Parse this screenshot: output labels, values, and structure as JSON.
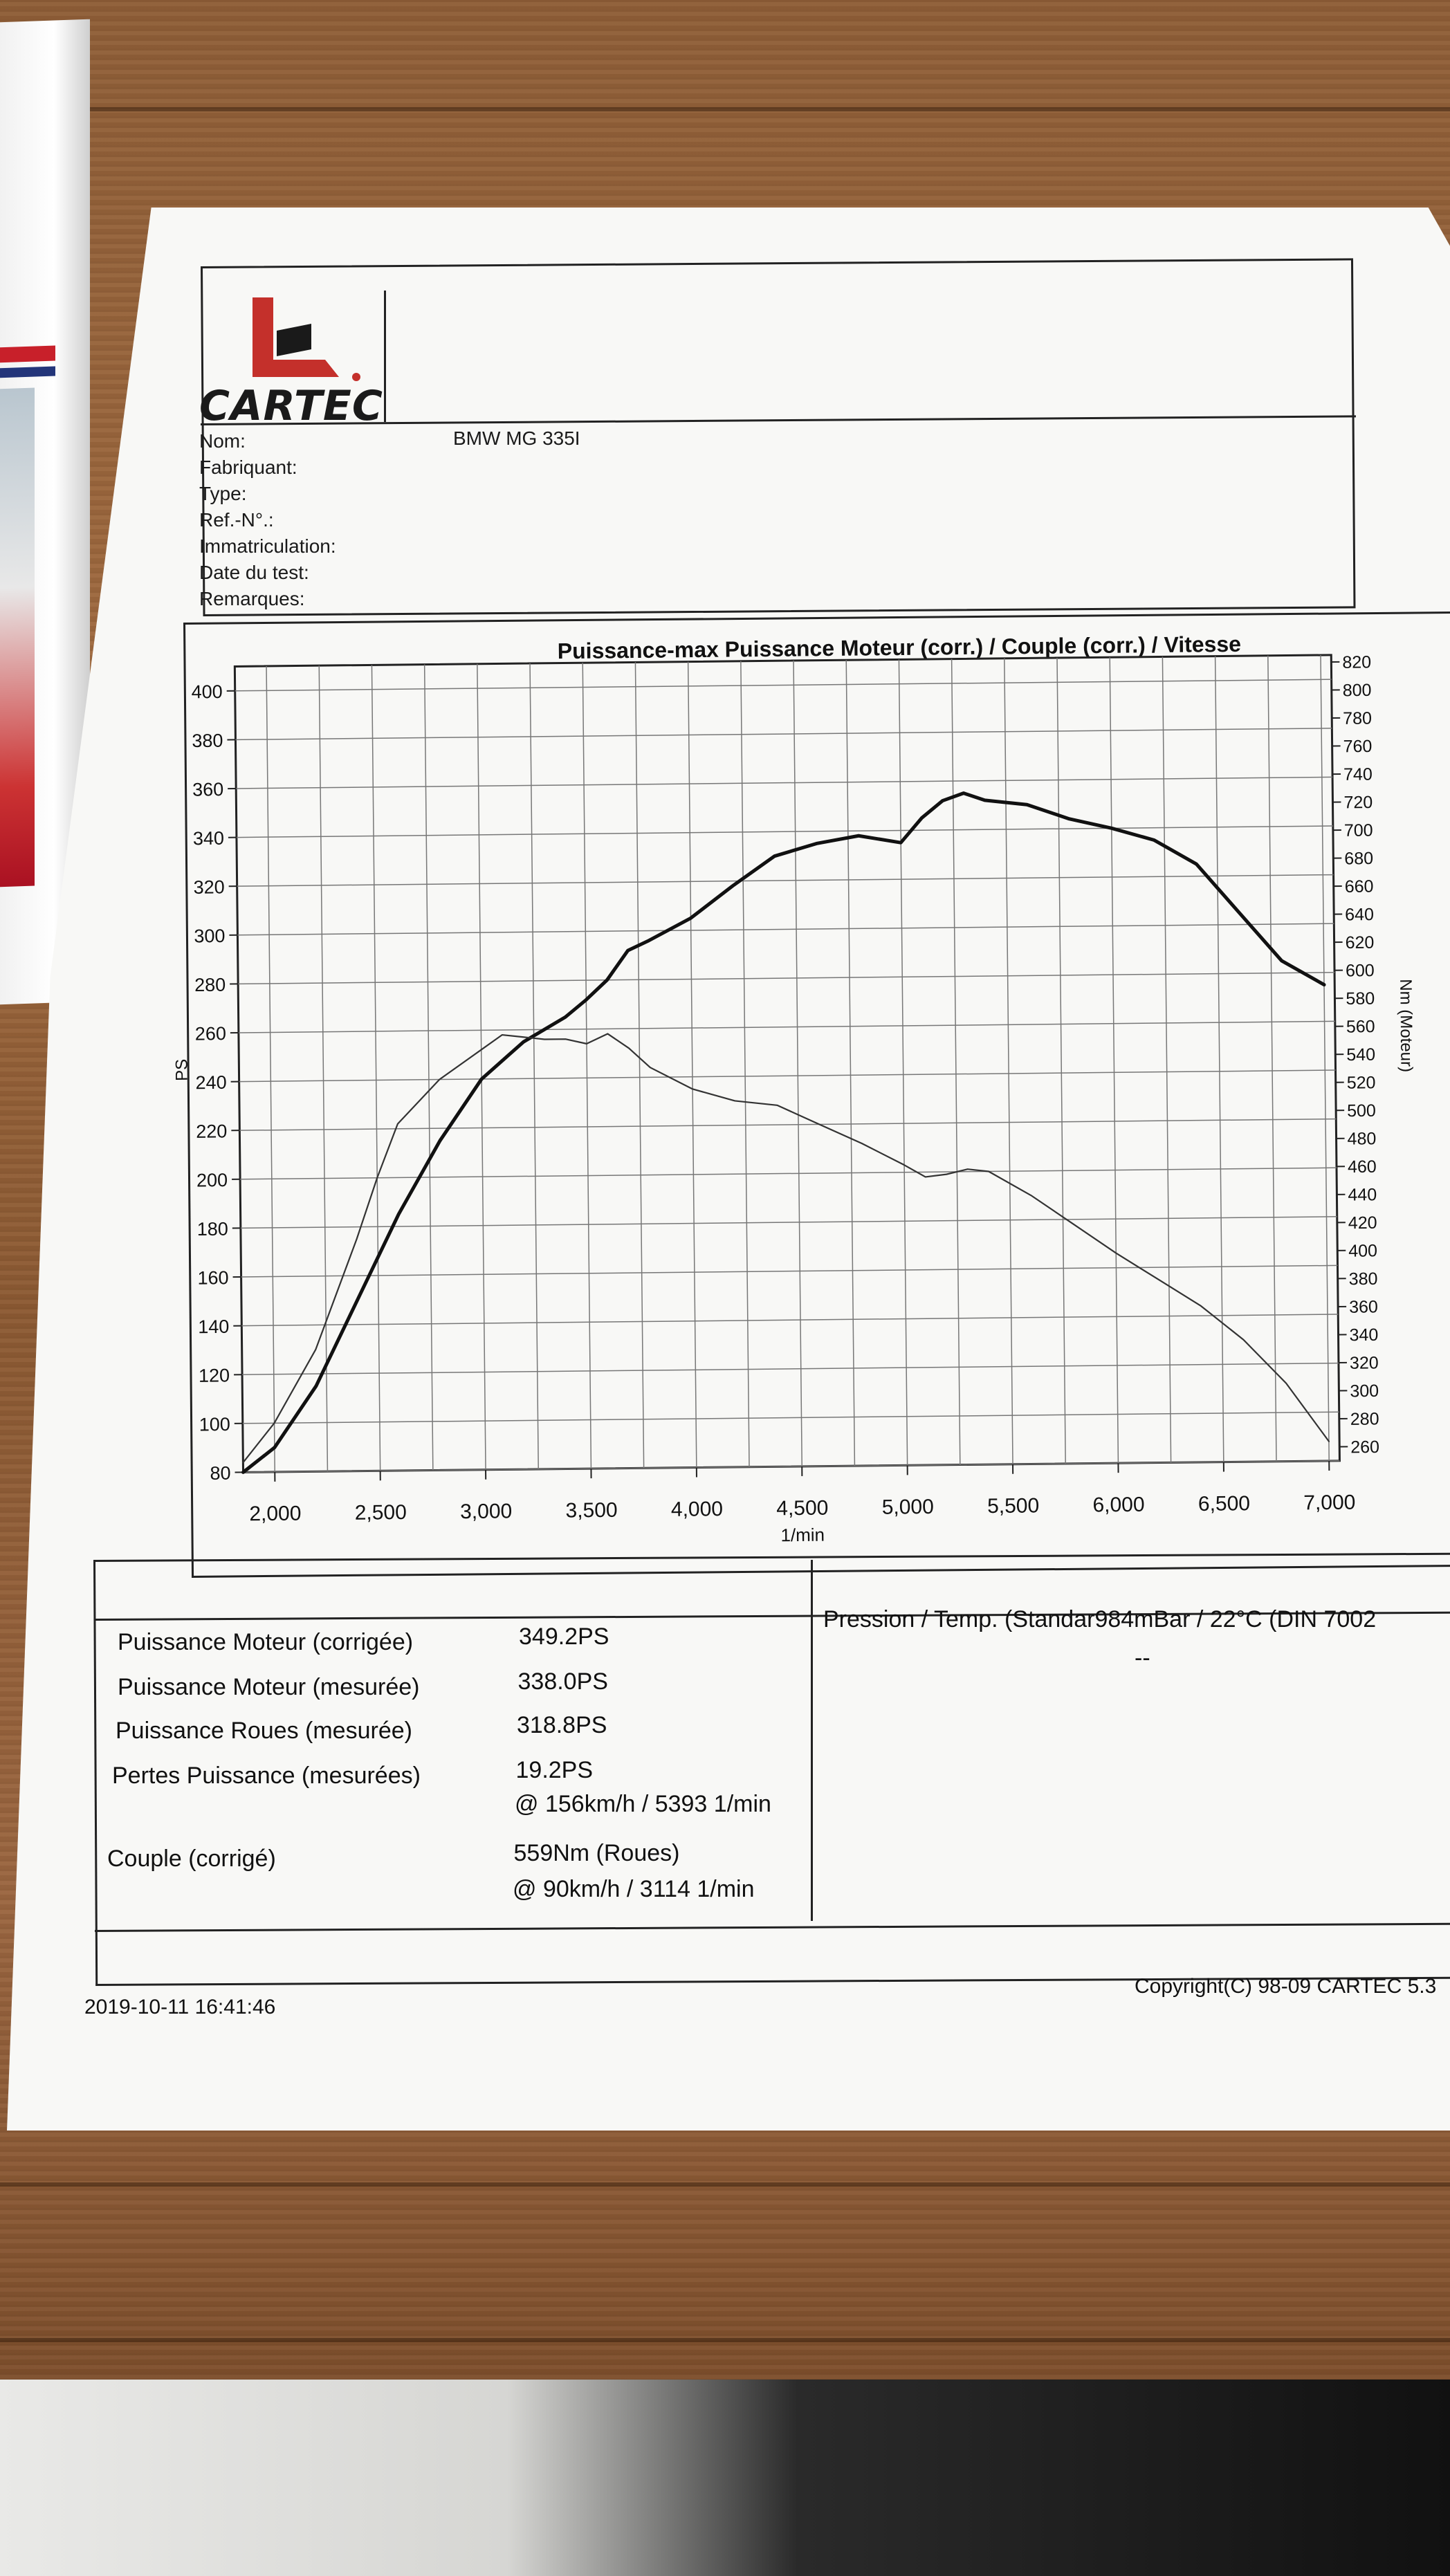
{
  "logo": {
    "brand": "CARTEC"
  },
  "vehicle_info": [
    {
      "label": "Nom:",
      "value": "BMW MG 335I"
    },
    {
      "label": "Fabriquant:",
      "value": ""
    },
    {
      "label": "Type:",
      "value": ""
    },
    {
      "label": "Ref.-N°.:",
      "value": ""
    },
    {
      "label": "Immatriculation:",
      "value": ""
    },
    {
      "label": "Date du test:",
      "value": ""
    },
    {
      "label": "Remarques:",
      "value": ""
    }
  ],
  "chart_data": {
    "type": "line",
    "title": "Puissance-max Puissance Moteur (corr.) / Couple (corr.) / Vitesse",
    "xlabel": "1/min",
    "ylabel_left": "PS",
    "ylabel_right": "Nm (Moteur)",
    "xlim": [
      1850,
      7050
    ],
    "ylim_left": [
      80,
      410
    ],
    "ylim_right": [
      250,
      825
    ],
    "x_ticks": [
      2000,
      2500,
      3000,
      3500,
      4000,
      4500,
      5000,
      5500,
      6000,
      6500,
      7000
    ],
    "x_tick_labels": [
      "2,000",
      "2,500",
      "3,000",
      "3,500",
      "4,000",
      "4,500",
      "5,000",
      "5,500",
      "6,000",
      "6,500",
      "7,000"
    ],
    "y_left_ticks": [
      80,
      100,
      120,
      140,
      160,
      180,
      200,
      220,
      240,
      260,
      280,
      300,
      320,
      340,
      360,
      380,
      400
    ],
    "y_right_ticks": [
      260,
      280,
      300,
      320,
      340,
      360,
      380,
      400,
      420,
      440,
      460,
      480,
      500,
      520,
      540,
      560,
      580,
      600,
      620,
      640,
      660,
      680,
      700,
      720,
      740,
      760,
      780,
      800,
      820
    ],
    "grid": true,
    "series": [
      {
        "axis": "left",
        "color": "#111111",
        "x": [
          1850,
          2000,
          2200,
          2400,
          2600,
          2800,
          3000,
          3200,
          3400,
          3500,
          3600,
          3700,
          3800,
          4000,
          4200,
          4400,
          4600,
          4800,
          5000,
          5100,
          5200,
          5300,
          5400,
          5600,
          5800,
          6000,
          6200,
          6400,
          6600,
          6800,
          7000
        ],
        "values": [
          80,
          90,
          115,
          150,
          185,
          215,
          240,
          255,
          265,
          272,
          280,
          292,
          296,
          305,
          318,
          330,
          335,
          338,
          335,
          345,
          352,
          355,
          352,
          350,
          344,
          340,
          335,
          325,
          305,
          285,
          275
        ]
      },
      {
        "axis": "left",
        "color": "#333333",
        "x": [
          1850,
          2000,
          2200,
          2400,
          2500,
          2600,
          2800,
          3000,
          3100,
          3200,
          3300,
          3400,
          3500,
          3600,
          3700,
          3800,
          4000,
          4200,
          4400,
          4600,
          4800,
          5000,
          5100,
          5200,
          5300,
          5400,
          5600,
          5800,
          6000,
          6200,
          6400,
          6600,
          6800,
          7000
        ],
        "values": [
          84,
          100,
          130,
          175,
          200,
          222,
          240,
          252,
          258,
          257,
          256,
          256,
          254,
          258,
          252,
          244,
          235,
          230,
          228,
          220,
          212,
          203,
          198,
          199,
          201,
          200,
          190,
          178,
          166,
          155,
          144,
          130,
          112,
          88
        ]
      }
    ]
  },
  "stats": [
    {
      "label": "Puissance Moteur (corrigée)",
      "value": "349.2PS"
    },
    {
      "label": "Puissance Moteur (mesurée)",
      "value": "338.0PS"
    },
    {
      "label": "Puissance Roues (mesurée)",
      "value": "318.8PS"
    },
    {
      "label": "Pertes Puissance (mesurées)",
      "value": "19.2PS"
    },
    {
      "label": "",
      "value": "@ 156km/h / 5393 1/min"
    },
    {
      "label": "Couple (corrigé)",
      "value": "559Nm (Roues)"
    },
    {
      "label": "",
      "value": "@ 90km/h / 3114 1/min"
    }
  ],
  "conditions": {
    "text": "Pression / Temp. (Standar984mBar / 22°C   (DIN 7002",
    "dash": "--"
  },
  "footer": {
    "datetime": "2019-10-11 16:41:46",
    "copyright": "Copyright(C) 98-09 CARTEC 5.3"
  }
}
